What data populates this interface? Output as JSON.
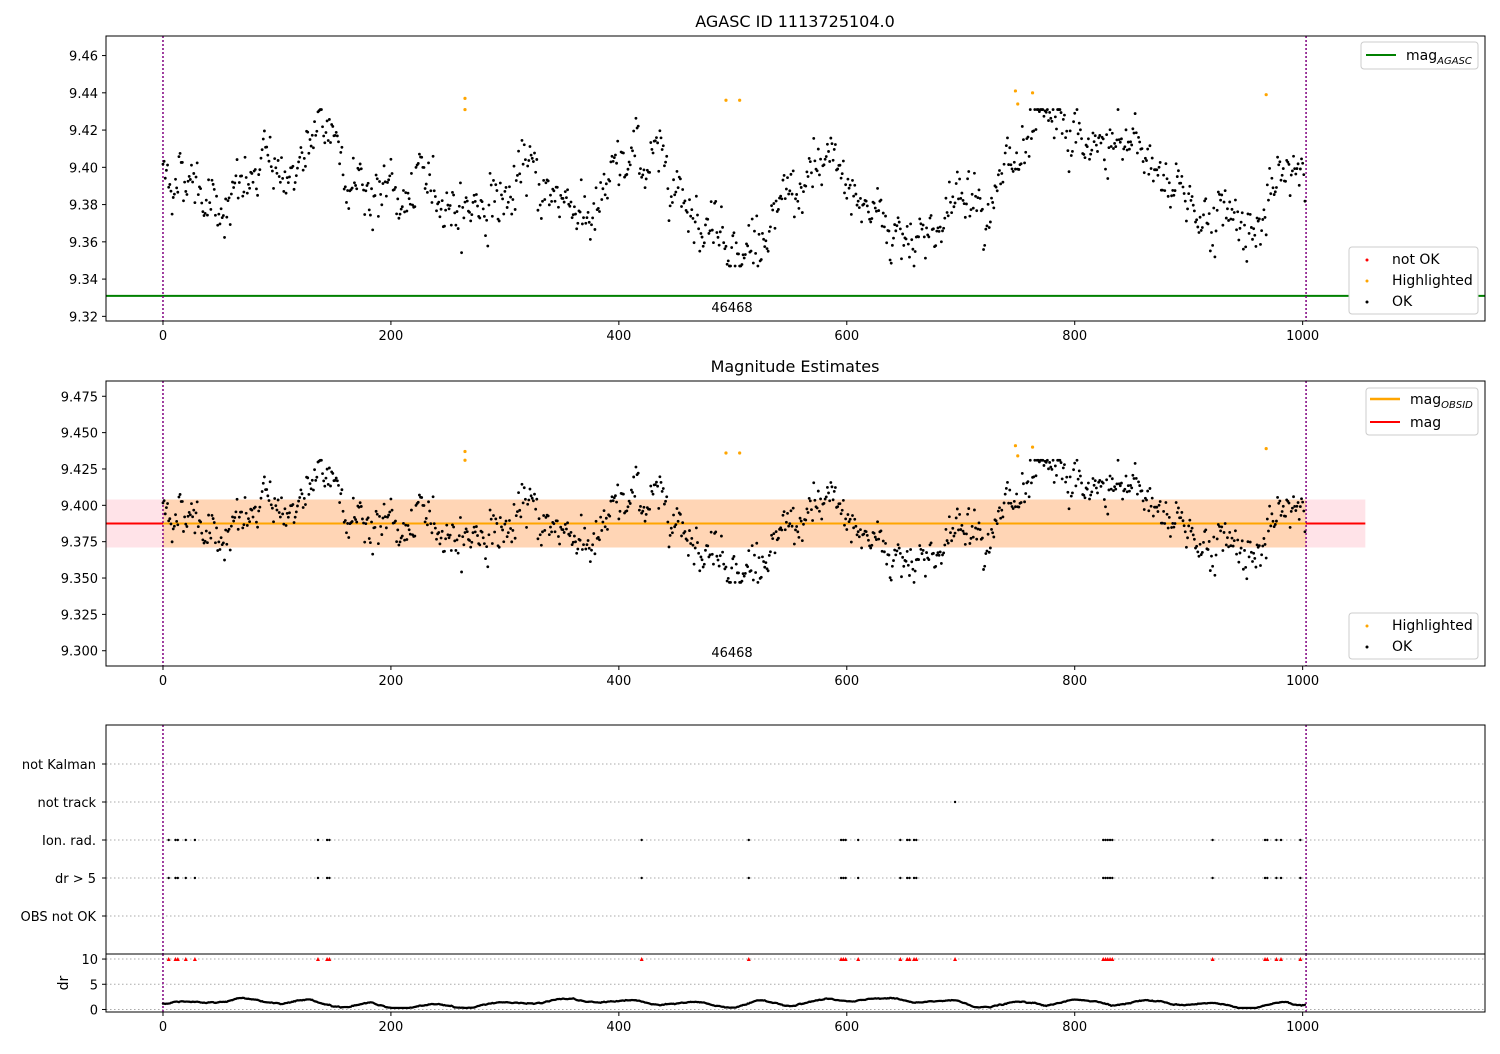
{
  "chart_data": [
    {
      "type": "scatter",
      "title": "AGASC ID 1113725104.0",
      "xlabel": "",
      "ylabel": "",
      "xlim": [
        -50,
        1160
      ],
      "ylim": [
        9.3175,
        9.4705
      ],
      "x_ticks": [
        "0",
        "200",
        "400",
        "600",
        "800",
        "1000"
      ],
      "y_ticks": [
        "9.32",
        "9.34",
        "9.36",
        "9.38",
        "9.40",
        "9.42",
        "9.44",
        "9.46"
      ],
      "obsid_boundaries": [
        0,
        1003
      ],
      "obsid_label": "46468",
      "reference_lines": [
        {
          "name": "mag_AGASC",
          "value": 9.331,
          "color": "#008000"
        }
      ],
      "legend_top": {
        "name": "mag",
        "subscript": "AGASC",
        "color": "#008000"
      },
      "legend_bottom": [
        {
          "name": "not OK",
          "color": "#ff0000"
        },
        {
          "name": "Highlighted",
          "color": "#ffa500"
        },
        {
          "name": "OK",
          "color": "#000000"
        }
      ],
      "series": [
        {
          "name": "OK",
          "color": "#000000",
          "n_points": 1003,
          "x_range": [
            0,
            1003
          ],
          "mean": 9.387,
          "std": 0.017
        },
        {
          "name": "Highlighted",
          "color": "#ffa500",
          "points": [
            [
              265,
              9.437
            ],
            [
              265,
              9.431
            ],
            [
              494,
              9.436
            ],
            [
              506,
              9.436
            ],
            [
              748,
              9.441
            ],
            [
              750,
              9.434
            ],
            [
              763,
              9.44
            ],
            [
              968,
              9.439
            ]
          ]
        },
        {
          "name": "not OK",
          "color": "#ff0000",
          "points": []
        }
      ],
      "grid": false
    },
    {
      "type": "scatter",
      "title": "Magnitude Estimates",
      "xlabel": "",
      "ylabel": "",
      "xlim": [
        -50,
        1160
      ],
      "ylim": [
        9.2895,
        9.4855
      ],
      "x_ticks": [
        "0",
        "200",
        "400",
        "600",
        "800",
        "1000"
      ],
      "y_ticks": [
        "9.300",
        "9.325",
        "9.350",
        "9.375",
        "9.400",
        "9.425",
        "9.450",
        "9.475"
      ],
      "obsid_boundaries": [
        0,
        1003
      ],
      "obsid_label": "46468",
      "reference_lines": [
        {
          "name": "mag",
          "value": 9.3875,
          "color": "#ff0000",
          "x_range": [
            -50,
            1055
          ]
        },
        {
          "name": "mag_OBSID",
          "value": 9.3875,
          "color": "#ffa500",
          "x_range": [
            0,
            1003
          ]
        }
      ],
      "bands": [
        {
          "name": "mag",
          "lower": 9.371,
          "upper": 9.404,
          "x_range": [
            -50,
            1055
          ],
          "color": "#ffc0cb"
        },
        {
          "name": "mag_OBSID",
          "lower": 9.371,
          "upper": 9.404,
          "x_range": [
            0,
            1003
          ],
          "color": "#ffa500"
        }
      ],
      "legend_top": [
        {
          "name": "mag",
          "subscript": "OBSID",
          "color": "#ffa500"
        },
        {
          "name": "mag",
          "subscript": "",
          "color": "#ff0000"
        }
      ],
      "legend_bottom": [
        {
          "name": "Highlighted",
          "color": "#ffa500"
        },
        {
          "name": "OK",
          "color": "#000000"
        }
      ],
      "series": [
        {
          "name": "OK",
          "color": "#000000",
          "n_points": 1003,
          "x_range": [
            0,
            1003
          ],
          "mean": 9.387,
          "std": 0.017
        },
        {
          "name": "Highlighted",
          "color": "#ffa500",
          "points": [
            [
              265,
              9.437
            ],
            [
              265,
              9.431
            ],
            [
              494,
              9.436
            ],
            [
              506,
              9.436
            ],
            [
              748,
              9.441
            ],
            [
              750,
              9.434
            ],
            [
              763,
              9.44
            ],
            [
              968,
              9.439
            ]
          ]
        }
      ],
      "grid": false
    },
    {
      "type": "scatter",
      "title": "",
      "xlabel": "",
      "ylabel": "",
      "xlim": [
        -50,
        1160
      ],
      "categories": [
        "not Kalman",
        "not track",
        "Ion. rad.",
        "dr > 5",
        "OBS not OK"
      ],
      "flags": {
        "not Kalman": [],
        "not track": [
          695
        ],
        "Ion. rad.": [
          5,
          11,
          13,
          20,
          28,
          136,
          144,
          146,
          420,
          514,
          595,
          597,
          599,
          610,
          647,
          653,
          655,
          659,
          661,
          825,
          827,
          829,
          831,
          833,
          921,
          967,
          969,
          977,
          981,
          998
        ],
        "dr > 5": [
          5,
          11,
          13,
          20,
          28,
          136,
          144,
          146,
          420,
          514,
          595,
          597,
          599,
          610,
          647,
          653,
          655,
          659,
          661,
          825,
          827,
          829,
          831,
          833,
          921,
          967,
          969,
          977,
          981,
          998
        ],
        "OBS not OK": []
      },
      "obsid_boundaries": [
        0,
        1003
      ],
      "grid": true
    },
    {
      "type": "scatter",
      "title": "",
      "xlabel": "",
      "ylabel": "dr",
      "xlim": [
        -50,
        1160
      ],
      "ylim": [
        -0.5,
        11
      ],
      "x_ticks": [
        "0",
        "200",
        "400",
        "600",
        "800",
        "1000"
      ],
      "y_ticks": [
        "0",
        "5",
        "10"
      ],
      "clip_value": 10,
      "clipped_markers": {
        "color": "#ff0000",
        "x": [
          5,
          11,
          13,
          20,
          28,
          136,
          144,
          146,
          420,
          514,
          595,
          597,
          599,
          610,
          647,
          653,
          655,
          659,
          661,
          695,
          825,
          827,
          829,
          831,
          833,
          921,
          967,
          969,
          977,
          981,
          998
        ]
      },
      "series": [
        {
          "name": "dr",
          "color": "#000000",
          "n_points": 1003,
          "x_range": [
            0,
            1003
          ],
          "typical_range": [
            0.3,
            2.6
          ]
        }
      ],
      "obsid_boundaries": [
        0,
        1003
      ],
      "grid": true
    }
  ]
}
